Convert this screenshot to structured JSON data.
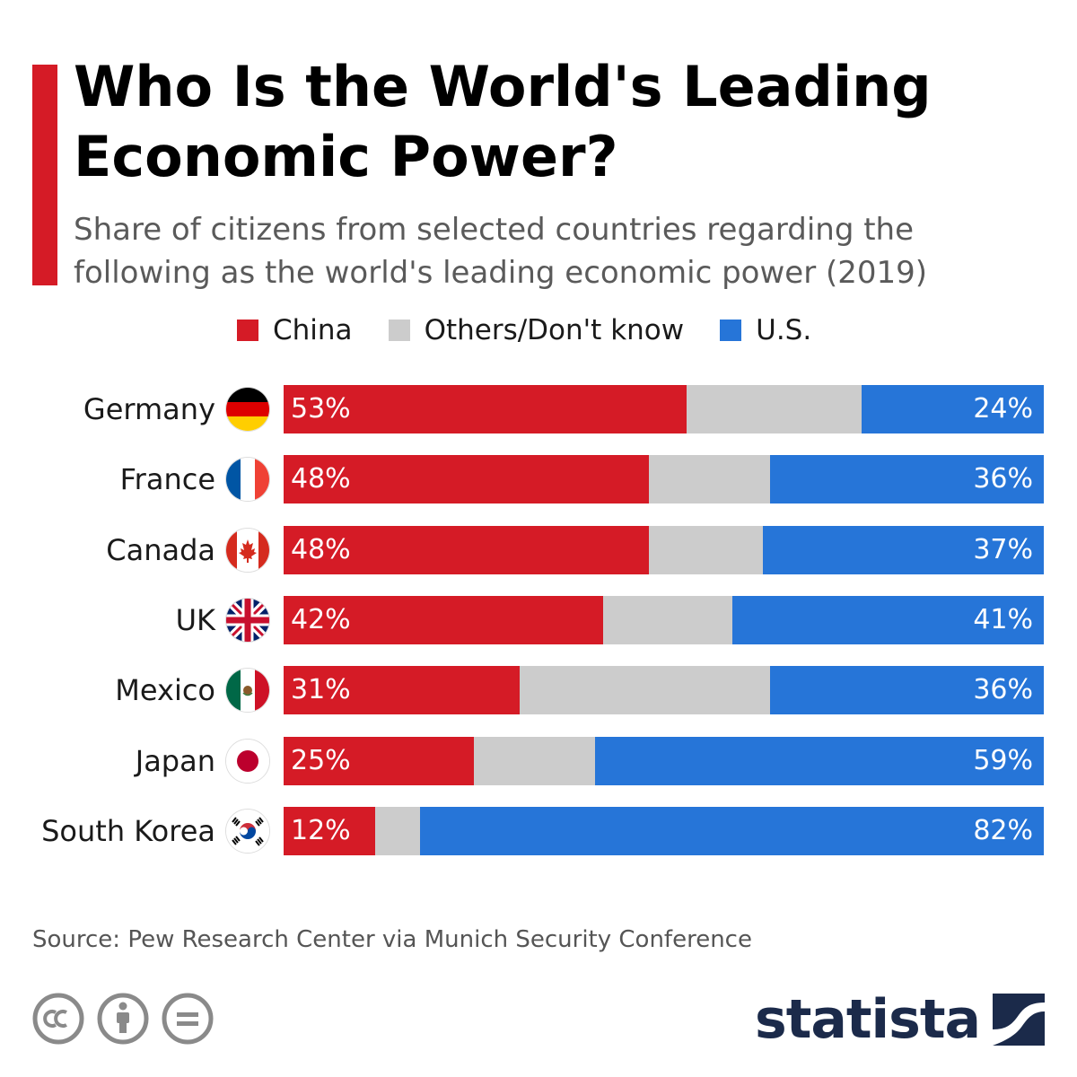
{
  "title": "Who Is the World's Leading Economic Power?",
  "subtitle": "Share of citizens from selected countries regarding the following as the world's leading economic power (2019)",
  "colors": {
    "accent": "#d51b26",
    "china": "#d51b26",
    "others": "#cccccc",
    "us": "#2675d8",
    "brand": "#1b2a4a"
  },
  "source": "Source: Pew Research Center via Munich Security Conference",
  "brand": "statista",
  "license_icons": [
    "cc-icon",
    "attribution-icon",
    "no-derivatives-icon"
  ],
  "chart_data": {
    "type": "bar",
    "orientation": "horizontal",
    "stacked": true,
    "normalized": true,
    "categories": [
      "Germany",
      "France",
      "Canada",
      "UK",
      "Mexico",
      "Japan",
      "South Korea"
    ],
    "series": [
      {
        "name": "China",
        "values": [
          53,
          48,
          48,
          42,
          31,
          25,
          12
        ]
      },
      {
        "name": "Others/Don't know",
        "values": [
          23,
          16,
          15,
          17,
          33,
          16,
          6
        ]
      },
      {
        "name": "U.S.",
        "values": [
          24,
          36,
          37,
          41,
          36,
          59,
          82
        ]
      }
    ],
    "labels": {
      "China": [
        "53%",
        "48%",
        "48%",
        "42%",
        "31%",
        "25%",
        "12%"
      ],
      "U.S.": [
        "24%",
        "36%",
        "37%",
        "41%",
        "36%",
        "59%",
        "82%"
      ]
    },
    "flags": [
      "germany-flag-icon",
      "france-flag-icon",
      "canada-flag-icon",
      "uk-flag-icon",
      "mexico-flag-icon",
      "japan-flag-icon",
      "south-korea-flag-icon"
    ],
    "legend_position": "top",
    "grid": false
  }
}
